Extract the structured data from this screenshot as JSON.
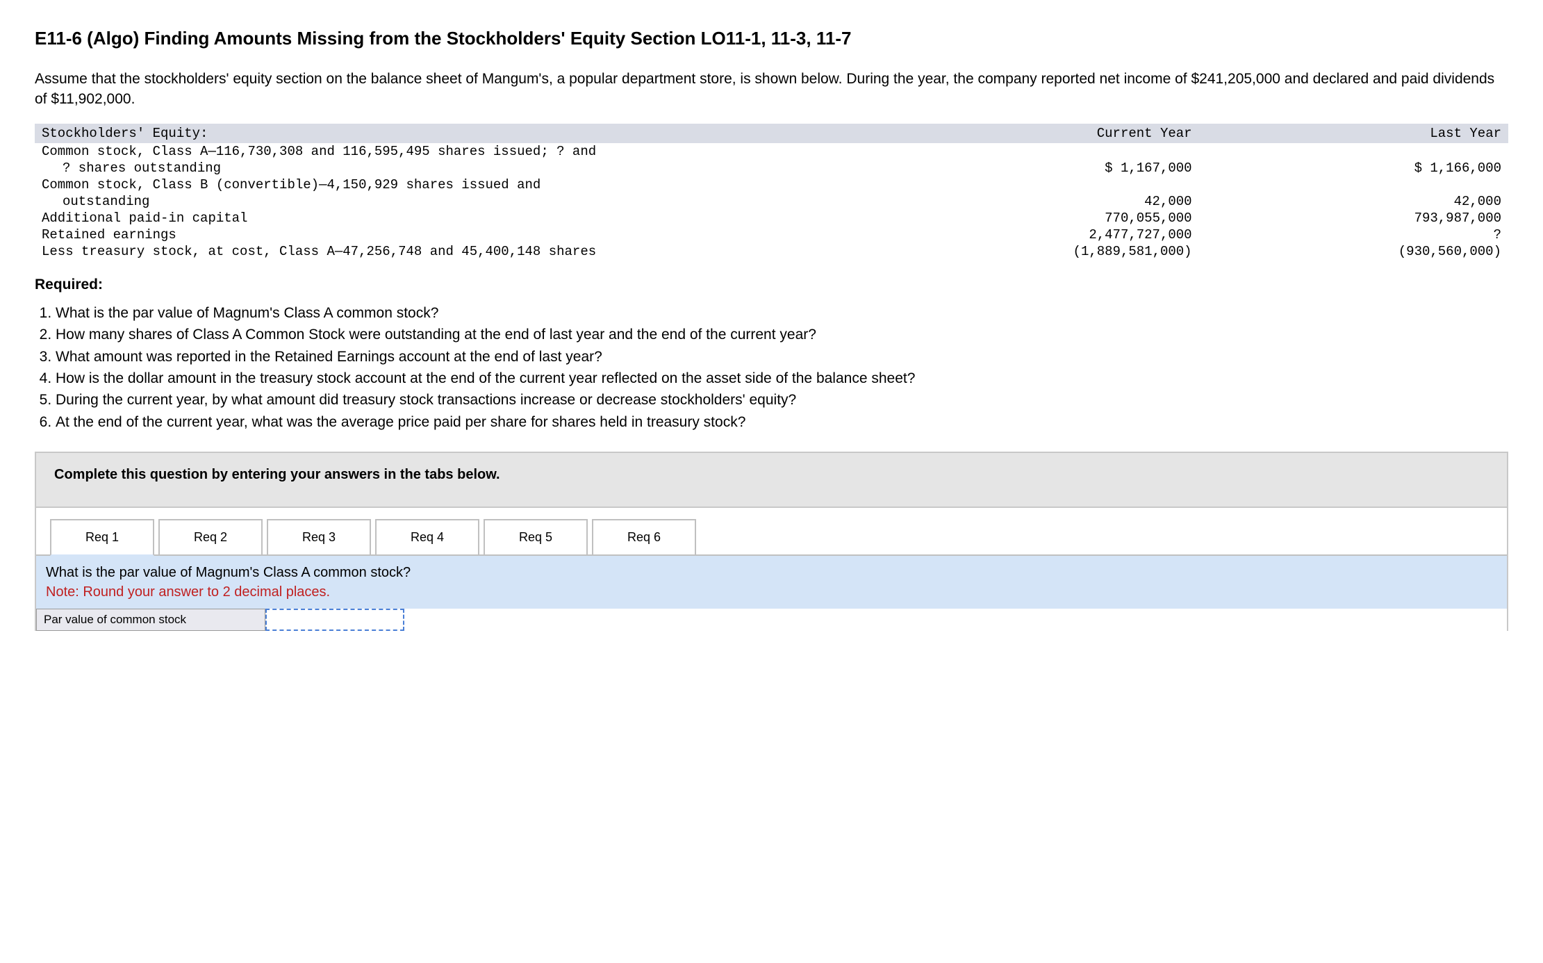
{
  "title": "E11-6 (Algo) Finding Amounts Missing from the Stockholders' Equity Section LO11-1, 11-3, 11-7",
  "intro": "Assume that the stockholders' equity section on the balance sheet of Mangum's, a popular department store, is shown below. During the year, the company reported net income of $241,205,000 and declared and paid dividends of $11,902,000.",
  "equity": {
    "header_label": "Stockholders' Equity:",
    "header_cy": "Current Year",
    "header_ly": "Last Year",
    "rows": [
      {
        "label": "Common stock, Class A—116,730,308 and 116,595,495 shares issued; ? and",
        "cy": "",
        "ly": "",
        "indent": false
      },
      {
        "label": "? shares outstanding",
        "cy": "$ 1,167,000",
        "ly": "$ 1,166,000",
        "indent": true
      },
      {
        "label": "Common stock, Class B (convertible)—4,150,929 shares issued and",
        "cy": "",
        "ly": "",
        "indent": false
      },
      {
        "label": "outstanding",
        "cy": "42,000",
        "ly": "42,000",
        "indent": true
      },
      {
        "label": "Additional paid-in capital",
        "cy": "770,055,000",
        "ly": "793,987,000",
        "indent": false
      },
      {
        "label": "Retained earnings",
        "cy": "2,477,727,000",
        "ly": "?",
        "indent": false
      },
      {
        "label": "Less treasury stock, at cost, Class A—47,256,748 and 45,400,148 shares",
        "cy": "(1,889,581,000)",
        "ly": "(930,560,000)",
        "indent": false
      }
    ],
    "colors": {
      "header_bg": "#d9dce5",
      "text": "#000000"
    }
  },
  "required_label": "Required:",
  "questions": [
    "What is the par value of Magnum's Class A common stock?",
    "How many shares of Class A Common Stock were outstanding at the end of last year and the end of the current year?",
    "What amount was reported in the Retained Earnings account at the end of last year?",
    "How is the dollar amount in the treasury stock account at the end of the current year reflected on the asset side of the balance sheet?",
    "During the current year, by what amount did treasury stock transactions increase or decrease stockholders' equity?",
    "At the end of the current year, what was the average price paid per share for shares held in treasury stock?"
  ],
  "answer_box": {
    "instruction": "Complete this question by entering your answers in the tabs below.",
    "tabs": [
      "Req 1",
      "Req 2",
      "Req 3",
      "Req 4",
      "Req 5",
      "Req 6"
    ],
    "active_tab": 0,
    "content_question": "What is the par value of Magnum's Class A common stock?",
    "content_note": "Note: Round your answer to 2 decimal places.",
    "input_label": "Par value of common stock",
    "input_value": ""
  },
  "styling": {
    "body_bg": "#ffffff",
    "tab_content_bg": "#d4e4f7",
    "answer_header_bg": "#e5e5e5",
    "note_color": "#c02020",
    "input_border": "#4a7fd6",
    "input_label_bg": "#e9e9ef"
  }
}
